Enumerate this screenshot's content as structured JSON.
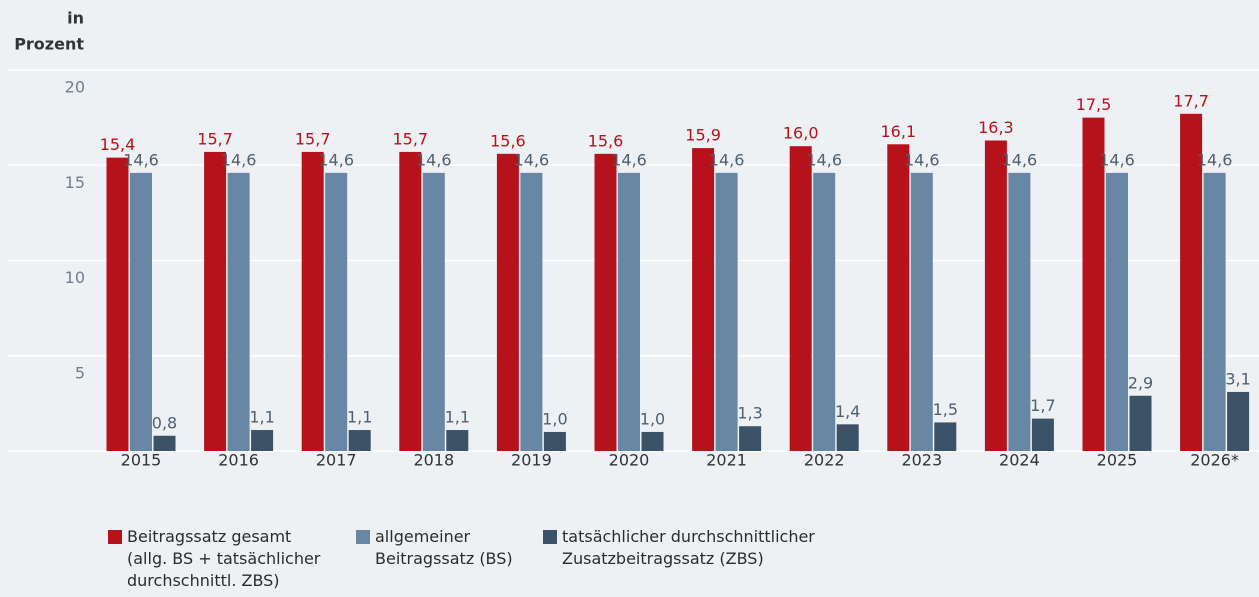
{
  "chart_data": {
    "type": "bar",
    "ylabel": [
      "in",
      "Prozent"
    ],
    "categories": [
      "2015",
      "2016",
      "2017",
      "2018",
      "2019",
      "2020",
      "2021",
      "2022",
      "2023",
      "2024",
      "2025",
      "2026*"
    ],
    "series": [
      {
        "name": "Beitragssatz gesamt\n(allg. BS + tatsächlicher\ndurchschnittl. ZBS)",
        "color": "#b5121b",
        "values": [
          15.4,
          15.7,
          15.7,
          15.7,
          15.6,
          15.6,
          15.9,
          16.0,
          16.1,
          16.3,
          17.5,
          17.7
        ],
        "value_labels": [
          "15,4",
          "15,7",
          "15,7",
          "15,7",
          "15,6",
          "15,6",
          "15,9",
          "16,0",
          "16,1",
          "16,3",
          "17,5",
          "17,7"
        ]
      },
      {
        "name": "allgemeiner\nBeitragssatz (BS)",
        "color": "#6787a5",
        "values": [
          14.6,
          14.6,
          14.6,
          14.6,
          14.6,
          14.6,
          14.6,
          14.6,
          14.6,
          14.6,
          14.6,
          14.6
        ],
        "value_labels": [
          "14,6",
          "14,6",
          "14,6",
          "14,6",
          "14,6",
          "14,6",
          "14,6",
          "14,6",
          "14,6",
          "14,6",
          "14,6",
          "14,6"
        ]
      },
      {
        "name": "tatsächlicher durchschnittlicher\nZusatzbeitragssatz (ZBS)",
        "color": "#3c5266",
        "values": [
          0.8,
          1.1,
          1.1,
          1.1,
          1.0,
          1.0,
          1.3,
          1.4,
          1.5,
          1.7,
          2.9,
          3.1
        ],
        "value_labels": [
          "0,8",
          "1,1",
          "1,1",
          "1,1",
          "1,0",
          "1,0",
          "1,3",
          "1,4",
          "1,5",
          "1,7",
          "2,9",
          "3,1"
        ]
      }
    ],
    "ylim": [
      0,
      20
    ],
    "yticks": [
      5,
      10,
      15,
      20
    ],
    "grid": true
  }
}
